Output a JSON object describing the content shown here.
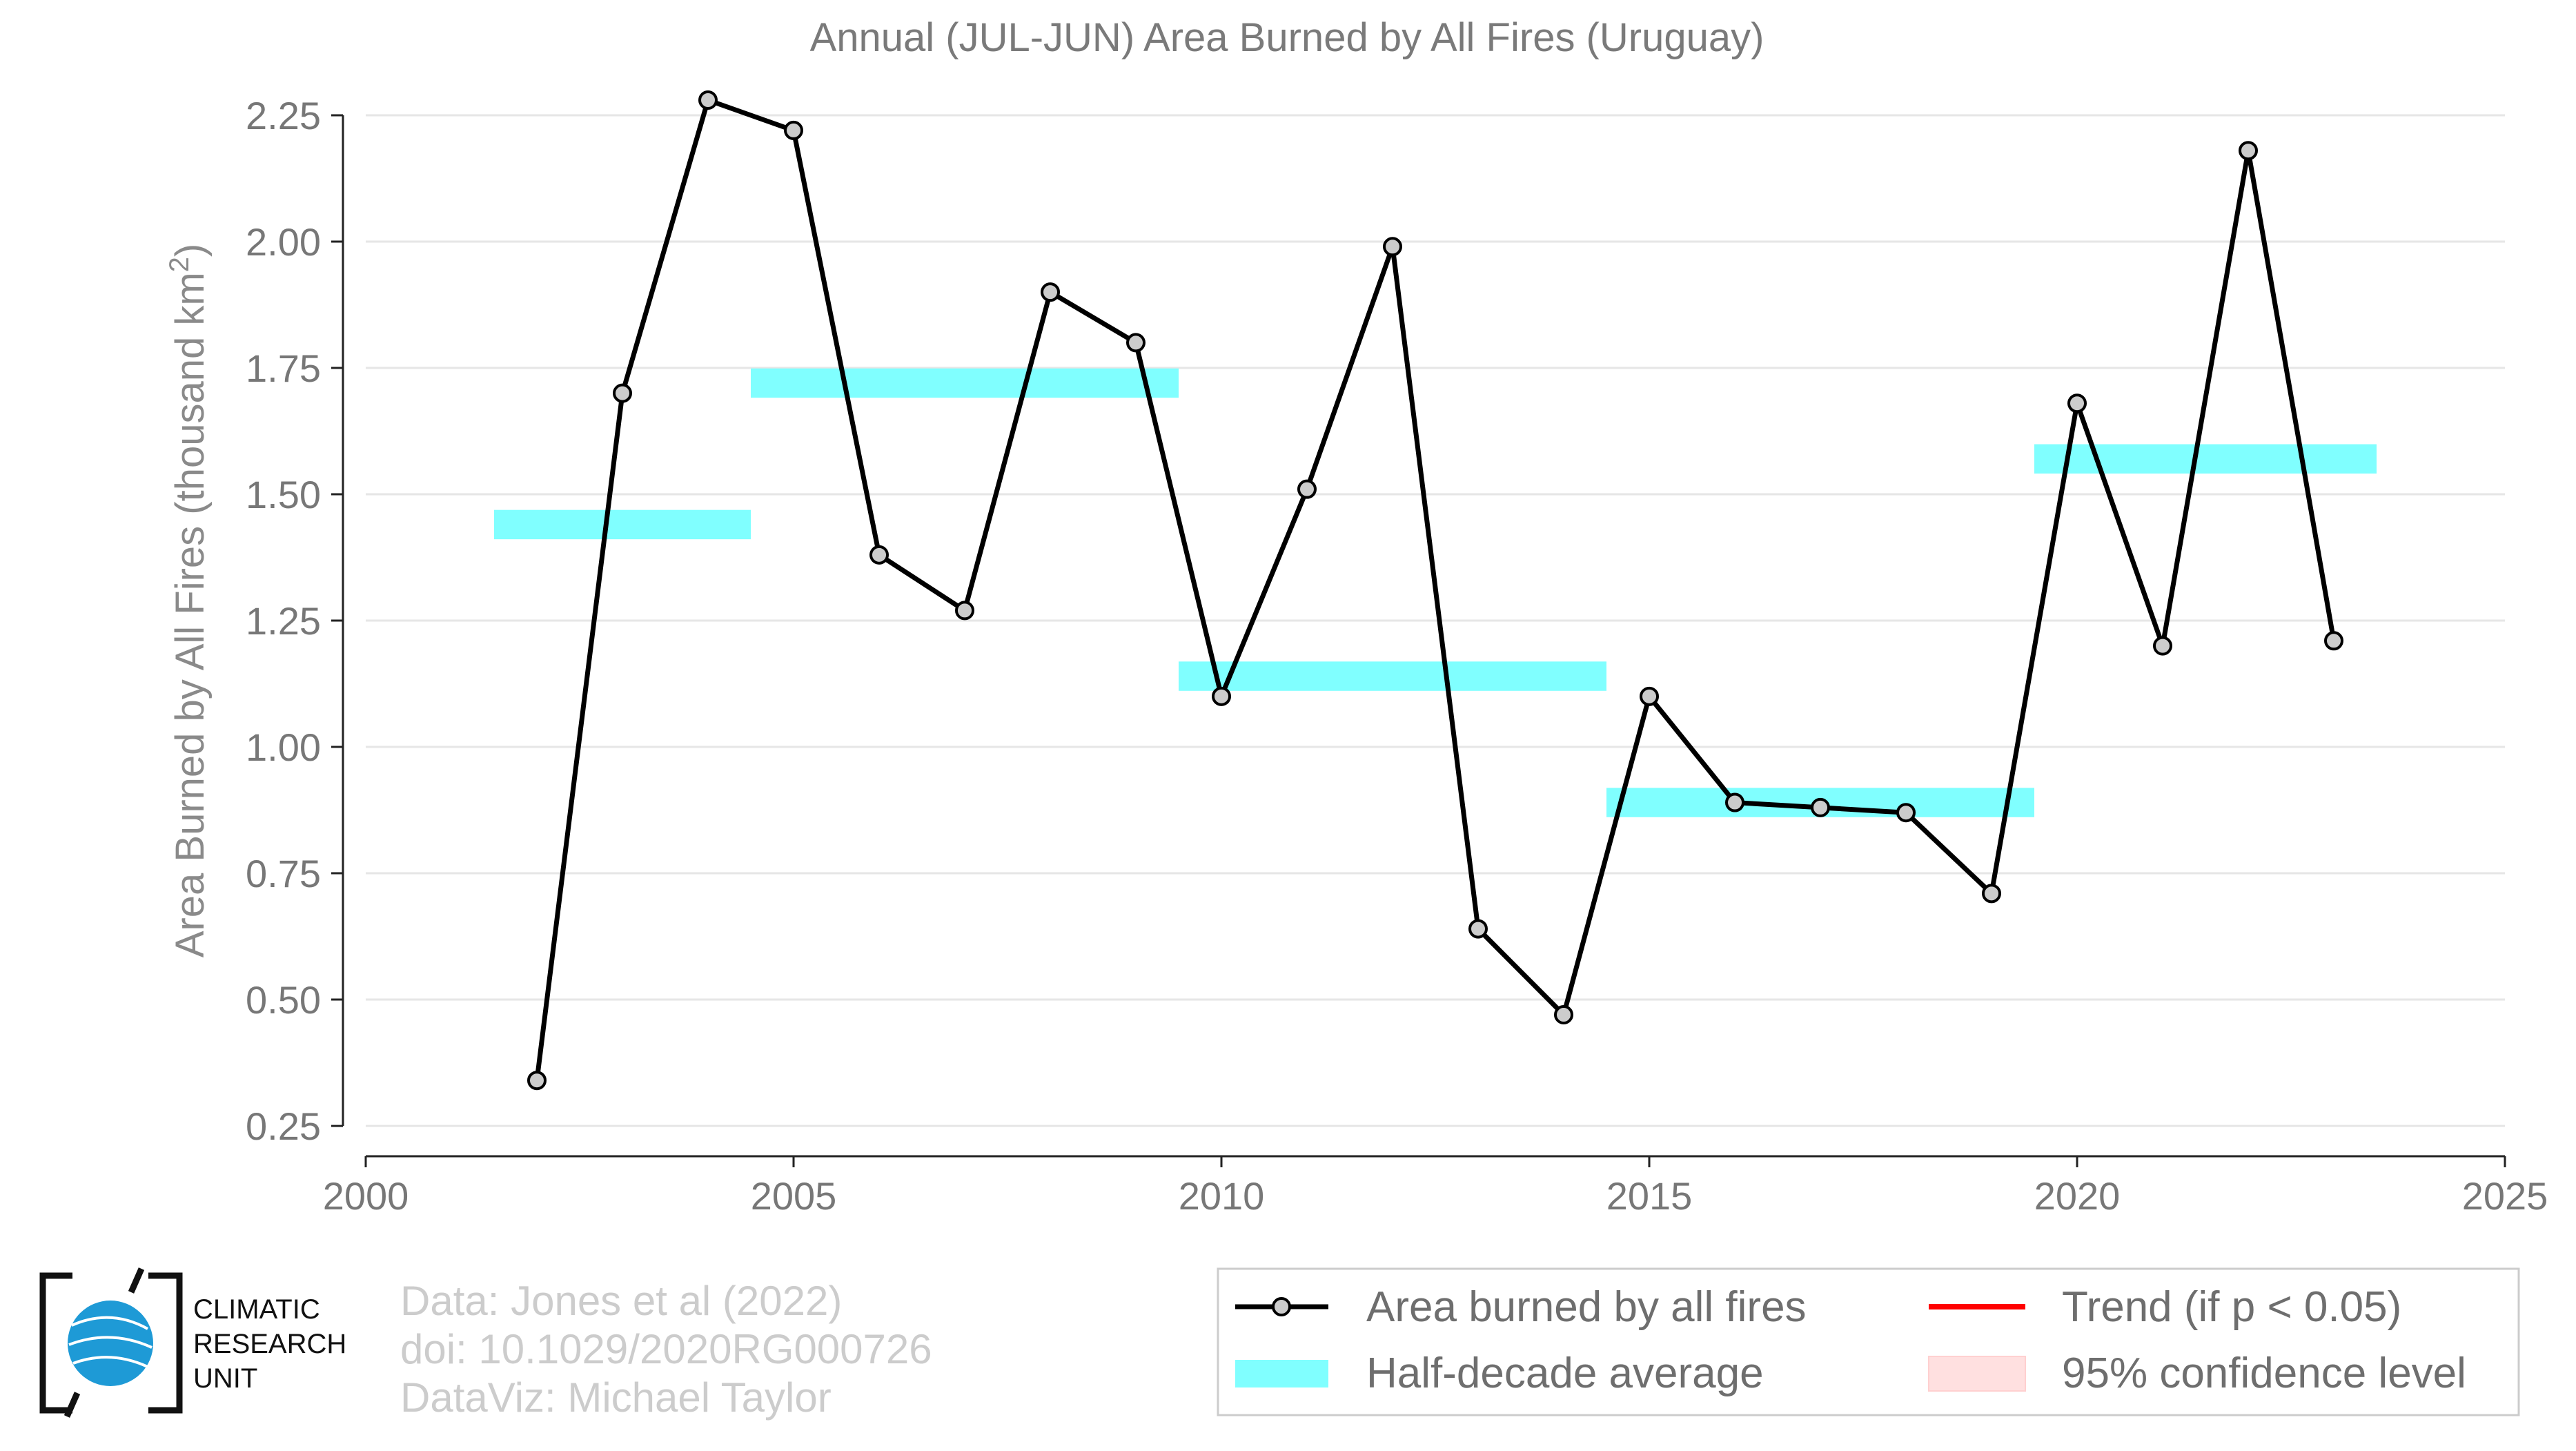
{
  "chart_data": {
    "type": "line",
    "title": "Annual (JUL-JUN) Area Burned by All Fires (Uruguay)",
    "ylabel": "Area Burned by All Fires (thousand km",
    "ylabel_superscript": "2",
    "ylabel_close": ")",
    "xlabel": "",
    "xlim": [
      2000,
      2025
    ],
    "ylim": [
      0.19,
      2.28
    ],
    "x_ticks": [
      2000,
      2005,
      2010,
      2015,
      2020,
      2025
    ],
    "y_ticks": [
      0.25,
      0.5,
      0.75,
      1.0,
      1.25,
      1.5,
      1.75,
      2.0,
      2.25
    ],
    "y_tick_labels": [
      "0.25",
      "0.50",
      "0.75",
      "1.00",
      "1.25",
      "1.50",
      "1.75",
      "2.00",
      "2.25"
    ],
    "x_tick_labels": [
      "2000",
      "2005",
      "2010",
      "2015",
      "2020",
      "2025"
    ],
    "grid": true,
    "series": [
      {
        "name": "Area burned by all fires",
        "color": "#000000",
        "marker_fill": "#cccccc",
        "x": [
          2002,
          2003,
          2004,
          2005,
          2006,
          2007,
          2008,
          2009,
          2010,
          2011,
          2012,
          2013,
          2014,
          2015,
          2016,
          2017,
          2018,
          2019,
          2020,
          2021,
          2022,
          2023
        ],
        "y": [
          0.34,
          1.7,
          2.28,
          2.22,
          1.38,
          1.27,
          1.9,
          1.8,
          1.1,
          1.51,
          1.99,
          0.64,
          0.47,
          1.1,
          0.89,
          0.88,
          0.87,
          0.71,
          1.68,
          1.2,
          2.18,
          1.21
        ]
      }
    ],
    "half_decade_average": {
      "name": "Half-decade average",
      "color": "#80ffff",
      "segments": [
        {
          "x0": 2001.5,
          "x1": 2004.5,
          "y": 1.44
        },
        {
          "x0": 2004.5,
          "x1": 2009.5,
          "y": 1.72
        },
        {
          "x0": 2009.5,
          "x1": 2014.5,
          "y": 1.14
        },
        {
          "x0": 2014.5,
          "x1": 2019.5,
          "y": 0.89
        },
        {
          "x0": 2019.5,
          "x1": 2023.5,
          "y": 1.57
        }
      ]
    },
    "trend": {
      "name": "Trend (if p < 0.05)",
      "color": "#ff0000"
    },
    "confidence": {
      "name": "95% confidence level",
      "color": "#ffe0e0"
    },
    "legend_placement": "bottom-right"
  },
  "credits": {
    "line1": "Data: Jones et al (2022)",
    "line2": "doi: 10.1029/2020RG000726",
    "line3": "DataViz: Michael Taylor"
  },
  "logo": {
    "line1": "CLIMATIC",
    "line2": "RESEARCH",
    "line3": "UNIT",
    "globe_color": "#1e9ad6"
  }
}
